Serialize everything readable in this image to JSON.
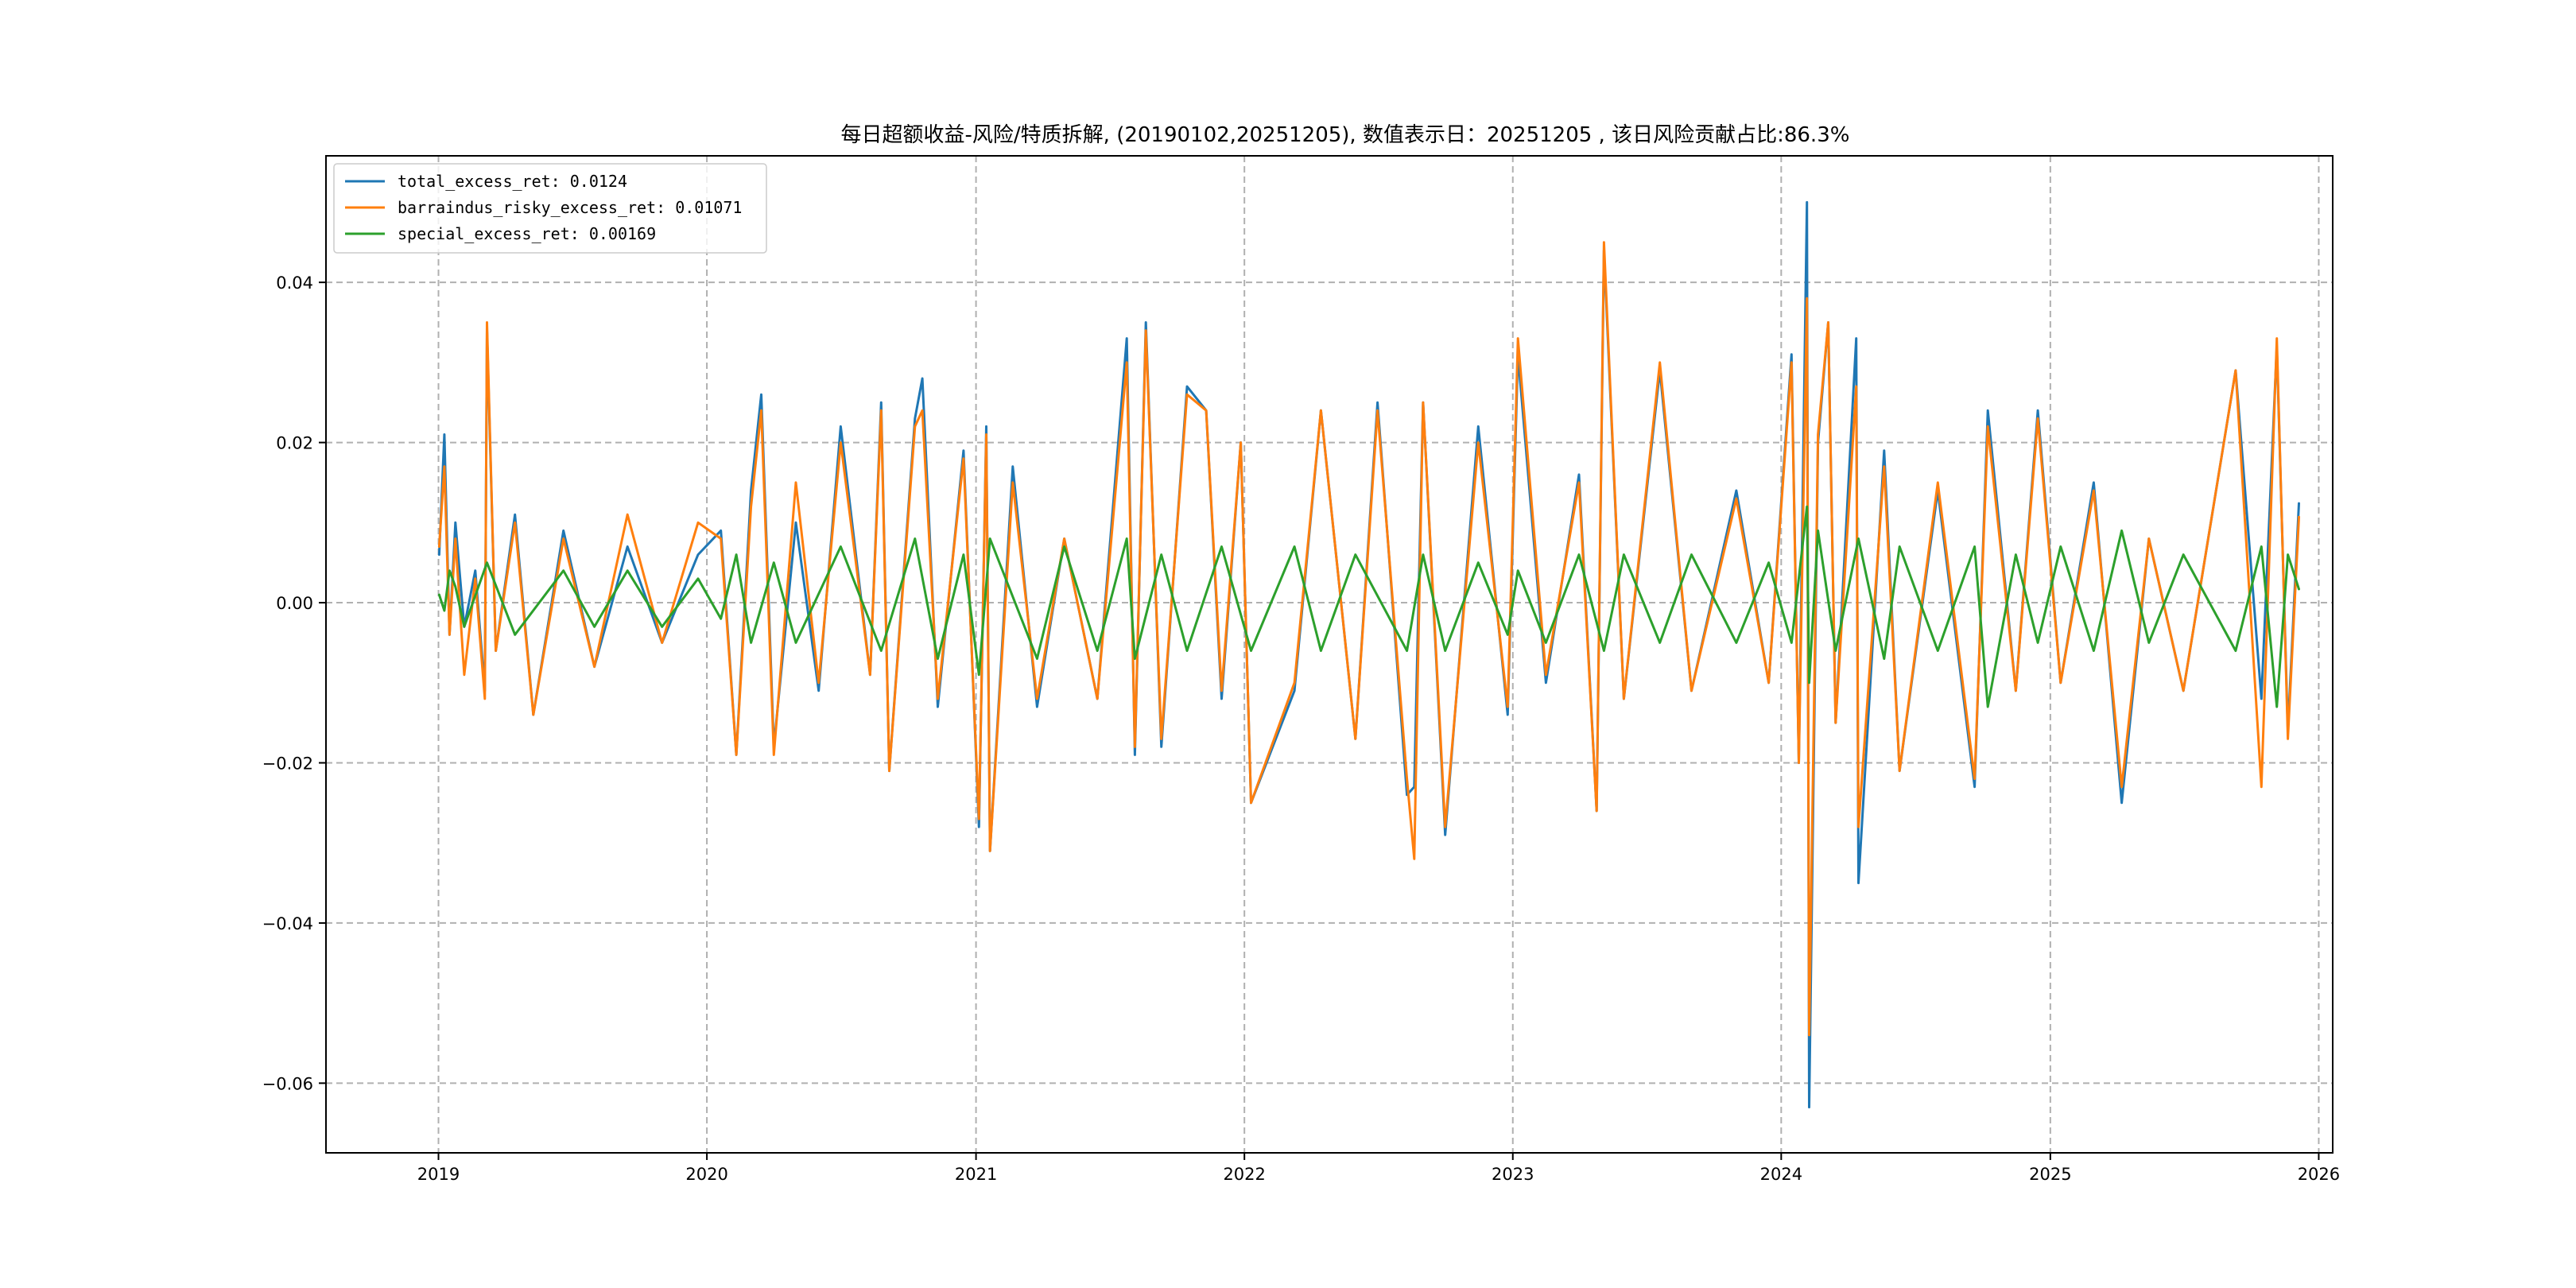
{
  "chart_data": {
    "type": "line",
    "title": "每日超额收益-风险/特质拆解, (20190102,20251205), 数值表示日：20251205 , 该日风险贡献占比:86.3%",
    "xlabel": "",
    "ylabel": "",
    "x_range": [
      "2018-08-01",
      "2026-01-20"
    ],
    "ylim": [
      -0.0687,
      0.0558
    ],
    "x_ticks": [
      "2019",
      "2020",
      "2021",
      "2022",
      "2023",
      "2024",
      "2025",
      "2026"
    ],
    "y_ticks": [
      "0.04",
      "0.02",
      "0.00",
      "−0.02",
      "−0.04",
      "−0.06"
    ],
    "y_tick_values": [
      0.04,
      0.02,
      0.0,
      -0.02,
      -0.04,
      -0.06
    ],
    "grid": true,
    "legend_position": "top-left",
    "series": [
      {
        "name": "total_excess_ret",
        "legend_label": "total_excess_ret: 0.0124",
        "color": "#1f77b4",
        "points": [
          [
            "2019-01-02",
            0.006
          ],
          [
            "2019-01-09",
            0.021
          ],
          [
            "2019-01-16",
            -0.004
          ],
          [
            "2019-01-24",
            0.01
          ],
          [
            "2019-02-05",
            -0.003
          ],
          [
            "2019-02-20",
            0.004
          ],
          [
            "2019-03-05",
            -0.011
          ],
          [
            "2019-03-08",
            0.034
          ],
          [
            "2019-03-20",
            -0.006
          ],
          [
            "2019-04-15",
            0.011
          ],
          [
            "2019-05-10",
            -0.014
          ],
          [
            "2019-06-20",
            0.009
          ],
          [
            "2019-08-01",
            -0.008
          ],
          [
            "2019-09-15",
            0.007
          ],
          [
            "2019-11-01",
            -0.005
          ],
          [
            "2019-12-20",
            0.006
          ],
          [
            "2020-01-20",
            0.009
          ],
          [
            "2020-02-10",
            -0.019
          ],
          [
            "2020-03-01",
            0.014
          ],
          [
            "2020-03-15",
            0.026
          ],
          [
            "2020-04-01",
            -0.018
          ],
          [
            "2020-05-01",
            0.01
          ],
          [
            "2020-06-01",
            -0.011
          ],
          [
            "2020-07-01",
            0.022
          ],
          [
            "2020-08-10",
            -0.009
          ],
          [
            "2020-08-25",
            0.025
          ],
          [
            "2020-09-05",
            -0.021
          ],
          [
            "2020-10-10",
            0.023
          ],
          [
            "2020-10-20",
            0.028
          ],
          [
            "2020-11-10",
            -0.013
          ],
          [
            "2020-12-15",
            0.019
          ],
          [
            "2021-01-05",
            -0.028
          ],
          [
            "2021-01-15",
            0.022
          ],
          [
            "2021-01-20",
            -0.031
          ],
          [
            "2021-02-20",
            0.017
          ],
          [
            "2021-03-25",
            -0.013
          ],
          [
            "2021-05-01",
            0.008
          ],
          [
            "2021-06-15",
            -0.012
          ],
          [
            "2021-07-25",
            0.033
          ],
          [
            "2021-08-05",
            -0.019
          ],
          [
            "2021-08-20",
            0.035
          ],
          [
            "2021-09-10",
            -0.018
          ],
          [
            "2021-10-15",
            0.027
          ],
          [
            "2021-11-10",
            0.024
          ],
          [
            "2021-12-01",
            -0.012
          ],
          [
            "2021-12-27",
            0.02
          ],
          [
            "2022-01-10",
            -0.025
          ],
          [
            "2022-03-10",
            -0.011
          ],
          [
            "2022-04-15",
            0.024
          ],
          [
            "2022-06-01",
            -0.017
          ],
          [
            "2022-07-01",
            0.025
          ],
          [
            "2022-08-10",
            -0.024
          ],
          [
            "2022-08-20",
            -0.023
          ],
          [
            "2022-09-01",
            0.025
          ],
          [
            "2022-10-01",
            -0.029
          ],
          [
            "2022-11-15",
            0.022
          ],
          [
            "2022-12-25",
            -0.014
          ],
          [
            "2023-01-08",
            0.031
          ],
          [
            "2023-02-15",
            -0.01
          ],
          [
            "2023-04-01",
            0.016
          ],
          [
            "2023-04-25",
            -0.026
          ],
          [
            "2023-05-05",
            0.044
          ],
          [
            "2023-06-01",
            -0.012
          ],
          [
            "2023-07-20",
            0.029
          ],
          [
            "2023-09-01",
            -0.011
          ],
          [
            "2023-11-01",
            0.014
          ],
          [
            "2023-12-15",
            -0.01
          ],
          [
            "2024-01-15",
            0.031
          ],
          [
            "2024-01-25",
            -0.02
          ],
          [
            "2024-02-05",
            0.05
          ],
          [
            "2024-02-08",
            -0.063
          ],
          [
            "2024-02-20",
            0.02
          ],
          [
            "2024-03-05",
            0.035
          ],
          [
            "2024-03-15",
            -0.015
          ],
          [
            "2024-04-12",
            0.033
          ],
          [
            "2024-04-15",
            -0.035
          ],
          [
            "2024-05-20",
            0.019
          ],
          [
            "2024-06-10",
            -0.021
          ],
          [
            "2024-08-01",
            0.014
          ],
          [
            "2024-09-20",
            -0.023
          ],
          [
            "2024-10-08",
            0.024
          ],
          [
            "2024-11-15",
            -0.011
          ],
          [
            "2024-12-15",
            0.024
          ],
          [
            "2025-01-15",
            -0.01
          ],
          [
            "2025-03-01",
            0.015
          ],
          [
            "2025-04-08",
            -0.025
          ],
          [
            "2025-05-15",
            0.008
          ],
          [
            "2025-07-01",
            -0.011
          ],
          [
            "2025-09-10",
            0.029
          ],
          [
            "2025-10-15",
            -0.012
          ],
          [
            "2025-11-05",
            0.032
          ],
          [
            "2025-11-20",
            -0.016
          ],
          [
            "2025-12-05",
            0.0124
          ]
        ]
      },
      {
        "name": "barraindus_risky_excess_ret",
        "legend_label": "barraindus_risky_excess_ret: 0.01071",
        "color": "#ff7f0e",
        "points": [
          [
            "2019-01-02",
            0.007
          ],
          [
            "2019-01-09",
            0.017
          ],
          [
            "2019-01-16",
            -0.004
          ],
          [
            "2019-01-24",
            0.008
          ],
          [
            "2019-02-05",
            -0.009
          ],
          [
            "2019-02-20",
            0.003
          ],
          [
            "2019-03-05",
            -0.012
          ],
          [
            "2019-03-08",
            0.035
          ],
          [
            "2019-03-20",
            -0.006
          ],
          [
            "2019-04-15",
            0.01
          ],
          [
            "2019-05-10",
            -0.014
          ],
          [
            "2019-06-20",
            0.008
          ],
          [
            "2019-08-01",
            -0.008
          ],
          [
            "2019-09-15",
            0.011
          ],
          [
            "2019-11-01",
            -0.005
          ],
          [
            "2019-12-20",
            0.01
          ],
          [
            "2020-01-20",
            0.008
          ],
          [
            "2020-02-10",
            -0.019
          ],
          [
            "2020-03-01",
            0.012
          ],
          [
            "2020-03-15",
            0.024
          ],
          [
            "2020-04-01",
            -0.019
          ],
          [
            "2020-05-01",
            0.015
          ],
          [
            "2020-06-01",
            -0.01
          ],
          [
            "2020-07-01",
            0.02
          ],
          [
            "2020-08-10",
            -0.009
          ],
          [
            "2020-08-25",
            0.024
          ],
          [
            "2020-09-05",
            -0.021
          ],
          [
            "2020-10-10",
            0.022
          ],
          [
            "2020-10-20",
            0.024
          ],
          [
            "2020-11-10",
            -0.012
          ],
          [
            "2020-12-15",
            0.018
          ],
          [
            "2021-01-05",
            -0.027
          ],
          [
            "2021-01-15",
            0.021
          ],
          [
            "2021-01-20",
            -0.031
          ],
          [
            "2021-02-20",
            0.015
          ],
          [
            "2021-03-25",
            -0.012
          ],
          [
            "2021-05-01",
            0.008
          ],
          [
            "2021-06-15",
            -0.012
          ],
          [
            "2021-07-25",
            0.03
          ],
          [
            "2021-08-05",
            -0.018
          ],
          [
            "2021-08-20",
            0.034
          ],
          [
            "2021-09-10",
            -0.017
          ],
          [
            "2021-10-15",
            0.026
          ],
          [
            "2021-11-10",
            0.024
          ],
          [
            "2021-12-01",
            -0.011
          ],
          [
            "2021-12-27",
            0.02
          ],
          [
            "2022-01-10",
            -0.025
          ],
          [
            "2022-03-10",
            -0.01
          ],
          [
            "2022-04-15",
            0.024
          ],
          [
            "2022-06-01",
            -0.017
          ],
          [
            "2022-07-01",
            0.024
          ],
          [
            "2022-08-10",
            -0.022
          ],
          [
            "2022-08-20",
            -0.032
          ],
          [
            "2022-09-01",
            0.025
          ],
          [
            "2022-10-01",
            -0.028
          ],
          [
            "2022-11-15",
            0.02
          ],
          [
            "2022-12-25",
            -0.013
          ],
          [
            "2023-01-08",
            0.033
          ],
          [
            "2023-02-15",
            -0.009
          ],
          [
            "2023-04-01",
            0.015
          ],
          [
            "2023-04-25",
            -0.026
          ],
          [
            "2023-05-05",
            0.045
          ],
          [
            "2023-06-01",
            -0.012
          ],
          [
            "2023-07-20",
            0.03
          ],
          [
            "2023-09-01",
            -0.011
          ],
          [
            "2023-11-01",
            0.013
          ],
          [
            "2023-12-15",
            -0.01
          ],
          [
            "2024-01-15",
            0.03
          ],
          [
            "2024-01-25",
            -0.02
          ],
          [
            "2024-02-05",
            0.038
          ],
          [
            "2024-02-08",
            -0.054
          ],
          [
            "2024-02-20",
            0.021
          ],
          [
            "2024-03-05",
            0.035
          ],
          [
            "2024-03-15",
            -0.015
          ],
          [
            "2024-04-12",
            0.027
          ],
          [
            "2024-04-15",
            -0.028
          ],
          [
            "2024-05-20",
            0.017
          ],
          [
            "2024-06-10",
            -0.021
          ],
          [
            "2024-08-01",
            0.015
          ],
          [
            "2024-09-20",
            -0.022
          ],
          [
            "2024-10-08",
            0.022
          ],
          [
            "2024-11-15",
            -0.011
          ],
          [
            "2024-12-15",
            0.023
          ],
          [
            "2025-01-15",
            -0.01
          ],
          [
            "2025-03-01",
            0.014
          ],
          [
            "2025-04-08",
            -0.023
          ],
          [
            "2025-05-15",
            0.008
          ],
          [
            "2025-07-01",
            -0.011
          ],
          [
            "2025-09-10",
            0.029
          ],
          [
            "2025-10-15",
            -0.023
          ],
          [
            "2025-11-05",
            0.033
          ],
          [
            "2025-11-20",
            -0.017
          ],
          [
            "2025-12-05",
            0.01071
          ]
        ]
      },
      {
        "name": "special_excess_ret",
        "legend_label": "special_excess_ret: 0.00169",
        "color": "#2ca02c",
        "points": [
          [
            "2019-01-02",
            0.001
          ],
          [
            "2019-01-09",
            -0.001
          ],
          [
            "2019-01-16",
            0.004
          ],
          [
            "2019-01-24",
            0.002
          ],
          [
            "2019-02-05",
            -0.003
          ],
          [
            "2019-03-08",
            0.005
          ],
          [
            "2019-04-15",
            -0.004
          ],
          [
            "2019-06-20",
            0.004
          ],
          [
            "2019-08-01",
            -0.003
          ],
          [
            "2019-09-15",
            0.004
          ],
          [
            "2019-11-01",
            -0.003
          ],
          [
            "2019-12-20",
            0.003
          ],
          [
            "2020-01-20",
            -0.002
          ],
          [
            "2020-02-10",
            0.006
          ],
          [
            "2020-03-01",
            -0.005
          ],
          [
            "2020-04-01",
            0.005
          ],
          [
            "2020-05-01",
            -0.005
          ],
          [
            "2020-07-01",
            0.007
          ],
          [
            "2020-08-25",
            -0.006
          ],
          [
            "2020-10-10",
            0.008
          ],
          [
            "2020-11-10",
            -0.007
          ],
          [
            "2020-12-15",
            0.006
          ],
          [
            "2021-01-05",
            -0.009
          ],
          [
            "2021-01-20",
            0.008
          ],
          [
            "2021-03-25",
            -0.007
          ],
          [
            "2021-05-01",
            0.007
          ],
          [
            "2021-06-15",
            -0.006
          ],
          [
            "2021-07-25",
            0.008
          ],
          [
            "2021-08-05",
            -0.007
          ],
          [
            "2021-09-10",
            0.006
          ],
          [
            "2021-10-15",
            -0.006
          ],
          [
            "2021-12-01",
            0.007
          ],
          [
            "2022-01-10",
            -0.006
          ],
          [
            "2022-03-10",
            0.007
          ],
          [
            "2022-04-15",
            -0.006
          ],
          [
            "2022-06-01",
            0.006
          ],
          [
            "2022-08-10",
            -0.006
          ],
          [
            "2022-09-01",
            0.006
          ],
          [
            "2022-10-01",
            -0.006
          ],
          [
            "2022-11-15",
            0.005
          ],
          [
            "2022-12-25",
            -0.004
          ],
          [
            "2023-01-08",
            0.004
          ],
          [
            "2023-02-15",
            -0.005
          ],
          [
            "2023-04-01",
            0.006
          ],
          [
            "2023-05-05",
            -0.006
          ],
          [
            "2023-06-01",
            0.006
          ],
          [
            "2023-07-20",
            -0.005
          ],
          [
            "2023-09-01",
            0.006
          ],
          [
            "2023-11-01",
            -0.005
          ],
          [
            "2023-12-15",
            0.005
          ],
          [
            "2024-01-15",
            -0.005
          ],
          [
            "2024-02-05",
            0.012
          ],
          [
            "2024-02-08",
            -0.01
          ],
          [
            "2024-02-20",
            0.009
          ],
          [
            "2024-03-15",
            -0.006
          ],
          [
            "2024-04-15",
            0.008
          ],
          [
            "2024-05-20",
            -0.007
          ],
          [
            "2024-06-10",
            0.007
          ],
          [
            "2024-08-01",
            -0.006
          ],
          [
            "2024-09-20",
            0.007
          ],
          [
            "2024-10-08",
            -0.013
          ],
          [
            "2024-11-15",
            0.006
          ],
          [
            "2024-12-15",
            -0.005
          ],
          [
            "2025-01-15",
            0.007
          ],
          [
            "2025-03-01",
            -0.006
          ],
          [
            "2025-04-08",
            0.009
          ],
          [
            "2025-05-15",
            -0.005
          ],
          [
            "2025-07-01",
            0.006
          ],
          [
            "2025-09-10",
            -0.006
          ],
          [
            "2025-10-15",
            0.007
          ],
          [
            "2025-11-05",
            -0.013
          ],
          [
            "2025-11-20",
            0.006
          ],
          [
            "2025-12-05",
            0.00169
          ]
        ]
      }
    ]
  }
}
